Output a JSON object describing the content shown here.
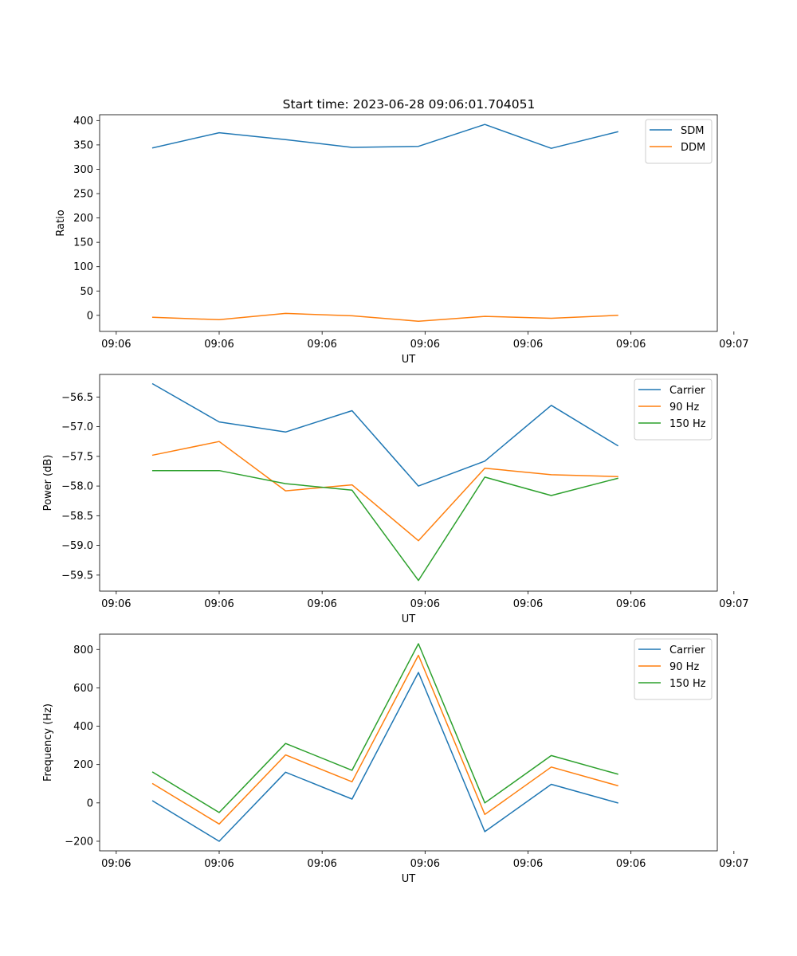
{
  "figure": {
    "title": "Start time: 2023-06-28 09:06:01.704051"
  },
  "chart_data": [
    {
      "type": "line",
      "title": "Start time: 2023-06-28 09:06:01.704051",
      "xlabel": "UT",
      "ylabel": "Ratio",
      "x": [
        1,
        2,
        3,
        4,
        5,
        6,
        7,
        8
      ],
      "xlim": [
        0.2,
        9.5
      ],
      "x_ticks": [
        0.45,
        2,
        3.55,
        5.1,
        6.65,
        8.2,
        9.75
      ],
      "x_tick_labels": [
        "09:06",
        "09:06",
        "09:06",
        "09:06",
        "09:06",
        "09:06",
        "09:07"
      ],
      "ylim": [
        -33,
        412
      ],
      "y_ticks": [
        0,
        50,
        100,
        150,
        200,
        250,
        300,
        350,
        400
      ],
      "y_tick_labels": [
        "0",
        "50",
        "100",
        "150",
        "200",
        "250",
        "300",
        "350",
        "400"
      ],
      "legend_position": "top-right",
      "grid": false,
      "series": [
        {
          "name": "SDM",
          "color": "#1f77b4",
          "values": [
            344,
            375,
            361,
            345,
            347,
            392,
            343,
            377
          ]
        },
        {
          "name": "DDM",
          "color": "#ff7f0e",
          "values": [
            -4,
            -9,
            4,
            -1,
            -12,
            -2,
            -6,
            0
          ]
        }
      ]
    },
    {
      "type": "line",
      "title": "",
      "xlabel": "UT",
      "ylabel": "Power (dB)",
      "x": [
        1,
        2,
        3,
        4,
        5,
        6,
        7,
        8
      ],
      "xlim": [
        0.2,
        9.5
      ],
      "x_ticks": [
        0.45,
        2,
        3.55,
        5.1,
        6.65,
        8.2,
        9.75
      ],
      "x_tick_labels": [
        "09:06",
        "09:06",
        "09:06",
        "09:06",
        "09:06",
        "09:06",
        "09:07"
      ],
      "ylim": [
        -59.77,
        -56.12
      ],
      "y_ticks": [
        -59.5,
        -59.0,
        -58.5,
        -58.0,
        -57.5,
        -57.0,
        -56.5
      ],
      "y_tick_labels": [
        "−59.5",
        "−59.0",
        "−58.5",
        "−58.0",
        "−57.5",
        "−57.0",
        "−56.5"
      ],
      "legend_position": "top-right",
      "grid": false,
      "series": [
        {
          "name": "Carrier",
          "color": "#1f77b4",
          "values": [
            -56.28,
            -56.92,
            -57.09,
            -56.73,
            -58.0,
            -57.58,
            -56.64,
            -57.32
          ]
        },
        {
          "name": "90 Hz",
          "color": "#ff7f0e",
          "values": [
            -57.48,
            -57.25,
            -58.08,
            -57.98,
            -58.92,
            -57.7,
            -57.81,
            -57.84
          ]
        },
        {
          "name": "150 Hz",
          "color": "#2ca02c",
          "values": [
            -57.74,
            -57.74,
            -57.96,
            -58.07,
            -59.59,
            -57.85,
            -58.16,
            -57.87
          ]
        }
      ]
    },
    {
      "type": "line",
      "title": "",
      "xlabel": "UT",
      "ylabel": "Frequency (Hz)",
      "x": [
        1,
        2,
        3,
        4,
        5,
        6,
        7,
        8
      ],
      "xlim": [
        0.2,
        9.5
      ],
      "x_ticks": [
        0.45,
        2,
        3.55,
        5.1,
        6.65,
        8.2,
        9.75
      ],
      "x_tick_labels": [
        "09:06",
        "09:06",
        "09:06",
        "09:06",
        "09:06",
        "09:06",
        "09:07"
      ],
      "ylim": [
        -250,
        880
      ],
      "y_ticks": [
        -200,
        0,
        200,
        400,
        600,
        800
      ],
      "y_tick_labels": [
        "−200",
        "0",
        "200",
        "400",
        "600",
        "800"
      ],
      "legend_position": "top-right",
      "grid": false,
      "series": [
        {
          "name": "Carrier",
          "color": "#1f77b4",
          "values": [
            10,
            -200,
            160,
            20,
            680,
            -150,
            97,
            0
          ]
        },
        {
          "name": "90 Hz",
          "color": "#ff7f0e",
          "values": [
            100,
            -110,
            250,
            110,
            770,
            -60,
            187,
            90
          ]
        },
        {
          "name": "150 Hz",
          "color": "#2ca02c",
          "values": [
            160,
            -50,
            310,
            170,
            830,
            0,
            247,
            150
          ]
        }
      ]
    }
  ]
}
